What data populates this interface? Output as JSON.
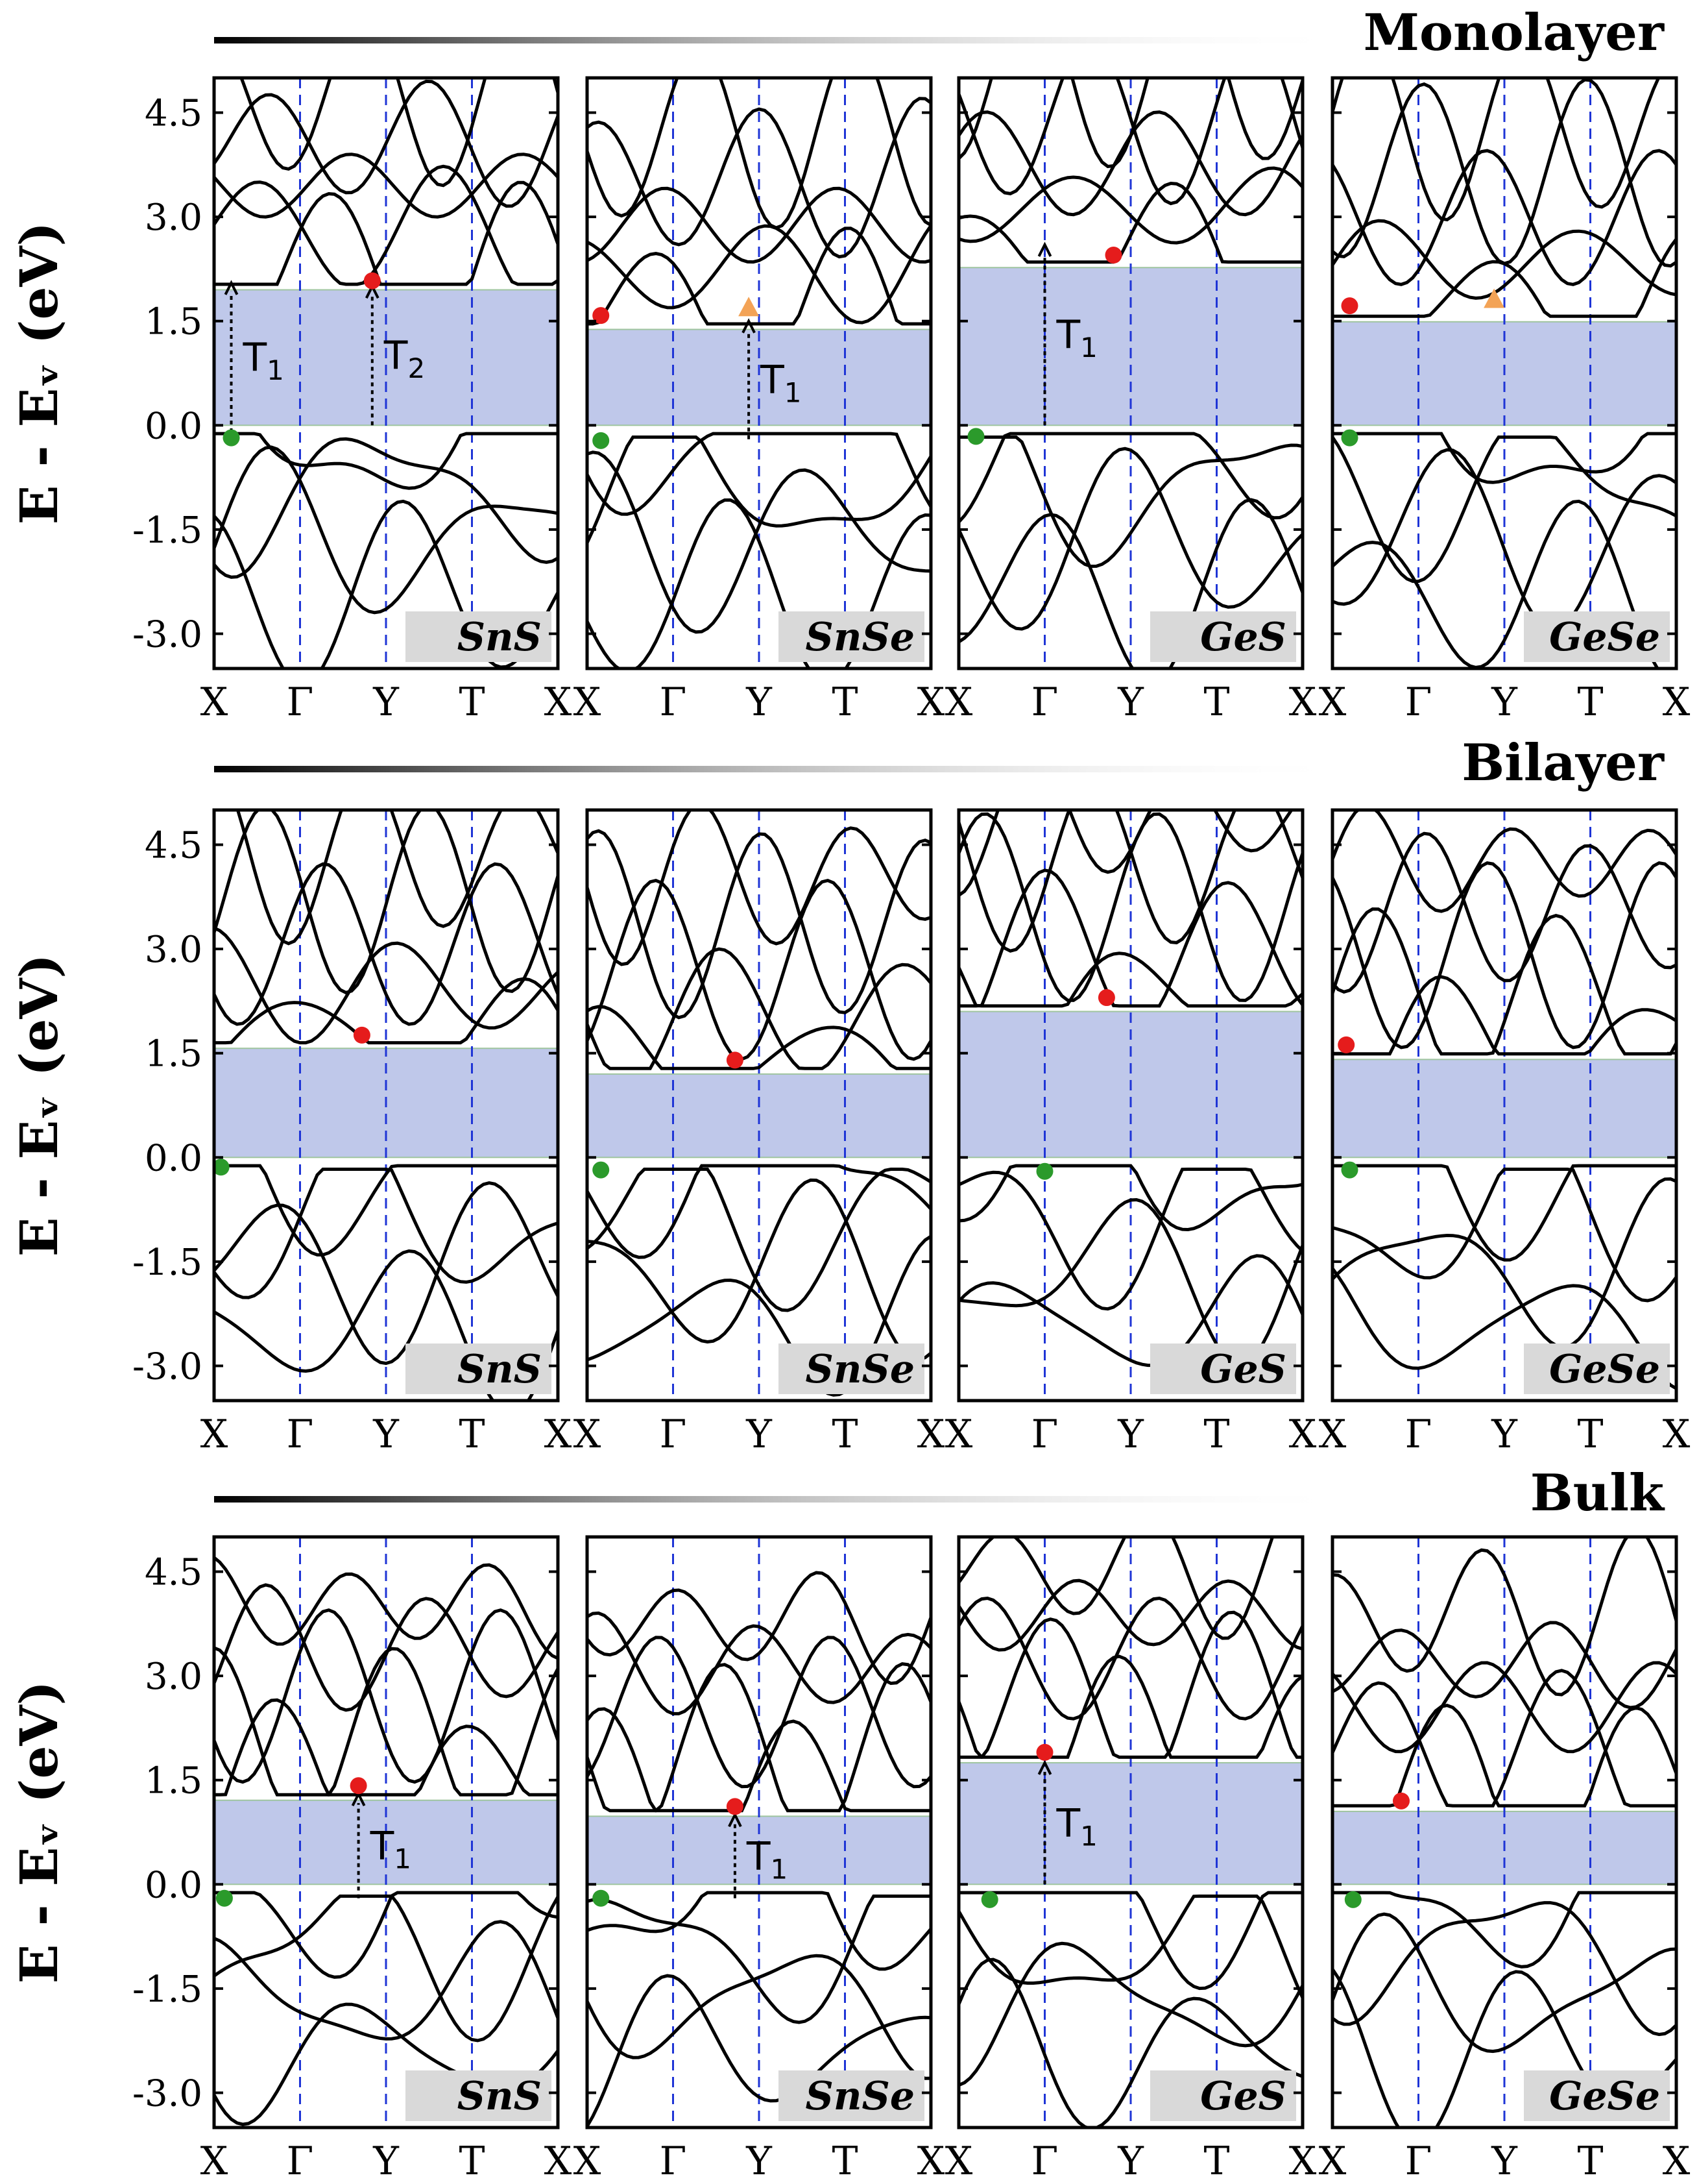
{
  "figure": {
    "y_axis_label": "E - Eᵥ (eV)",
    "y_ticks": [
      "4.5",
      "3.0",
      "1.5",
      "0.0",
      "-1.5",
      "-3.0"
    ],
    "k_path_labels": [
      "X",
      "Γ",
      "Y",
      "T",
      "X"
    ]
  },
  "colors": {
    "gap_band": "#bfc8ea",
    "gap_edge": "#9fc59f",
    "dashed_line": "#1f35d6",
    "band_line": "#000000",
    "vbm_marker": "#2b9a2b",
    "cbm_marker": "#e51c1c",
    "cbm_alt_marker": "#f3a356",
    "label_box": "#d9d9d9"
  },
  "chart_data": [
    {
      "type": "line",
      "title": "Monolayer",
      "ylabel": "E - Eᵥ (eV)",
      "ylim": [
        -3.5,
        5.0
      ],
      "panels": [
        {
          "material": "SnS",
          "gap_eV": 1.95,
          "vbm": [
            0.05,
            -0.18
          ],
          "cbm": [
            0.46,
            2.08
          ],
          "cbm_marker": "circle",
          "kx": [
            0,
            0.25,
            0.5,
            0.75,
            1
          ],
          "transitions": [
            {
              "label": "T1",
              "sub": "1",
              "x": 0.05,
              "from": -0.1,
              "to": 2.05
            },
            {
              "label": "T2",
              "sub": "2",
              "x": 0.46,
              "from": 0.0,
              "to": 2.0
            }
          ]
        },
        {
          "material": "SnSe",
          "gap_eV": 1.38,
          "vbm": [
            0.04,
            -0.22
          ],
          "cbm": [
            0.04,
            1.58
          ],
          "alt_cbm": [
            0.47,
            1.7
          ],
          "cbm_marker": "circle",
          "kx": [
            0,
            0.25,
            0.5,
            0.75,
            1
          ],
          "transitions": [
            {
              "label": "T1",
              "sub": "1",
              "x": 0.47,
              "from": -0.2,
              "to": 1.5
            }
          ]
        },
        {
          "material": "GeS",
          "gap_eV": 2.27,
          "vbm": [
            0.05,
            -0.16
          ],
          "cbm": [
            0.45,
            2.45
          ],
          "cbm_marker": "circle",
          "kx": [
            0,
            0.25,
            0.5,
            0.75,
            1
          ],
          "transitions": [
            {
              "label": "T1",
              "sub": "1",
              "x": 0.25,
              "from": 0.0,
              "to": 2.6
            }
          ]
        },
        {
          "material": "GeSe",
          "gap_eV": 1.49,
          "vbm": [
            0.05,
            -0.18
          ],
          "cbm": [
            0.05,
            1.72
          ],
          "alt_cbm": [
            0.47,
            1.82
          ],
          "cbm_marker": "circle",
          "kx": [
            0,
            0.25,
            0.5,
            0.75,
            1
          ],
          "transitions": []
        }
      ]
    },
    {
      "type": "line",
      "title": "Bilayer",
      "ylabel": "E - Eᵥ (eV)",
      "ylim": [
        -3.5,
        5.0
      ],
      "panels": [
        {
          "material": "SnS",
          "gap_eV": 1.57,
          "vbm": [
            0.02,
            -0.14
          ],
          "cbm": [
            0.43,
            1.76
          ],
          "cbm_marker": "circle",
          "kx": [
            0,
            0.25,
            0.5,
            0.75,
            1
          ],
          "transitions": []
        },
        {
          "material": "SnSe",
          "gap_eV": 1.2,
          "vbm": [
            0.04,
            -0.18
          ],
          "cbm": [
            0.43,
            1.4
          ],
          "cbm_marker": "circle",
          "kx": [
            0,
            0.25,
            0.5,
            0.75,
            1
          ],
          "transitions": []
        },
        {
          "material": "GeS",
          "gap_eV": 2.1,
          "vbm": [
            0.25,
            -0.2
          ],
          "cbm": [
            0.43,
            2.3
          ],
          "cbm_marker": "circle",
          "kx": [
            0,
            0.25,
            0.5,
            0.75,
            1
          ],
          "transitions": []
        },
        {
          "material": "GeSe",
          "gap_eV": 1.41,
          "vbm": [
            0.05,
            -0.18
          ],
          "cbm": [
            0.04,
            1.62
          ],
          "cbm_marker": "circle",
          "kx": [
            0,
            0.25,
            0.5,
            0.75,
            1
          ],
          "transitions": []
        }
      ]
    },
    {
      "type": "line",
      "title": "Bulk",
      "ylabel": "E - Eᵥ (eV)",
      "ylim": [
        -3.5,
        5.0
      ],
      "panels": [
        {
          "material": "SnS",
          "gap_eV": 1.21,
          "vbm": [
            0.03,
            -0.2
          ],
          "cbm": [
            0.42,
            1.42
          ],
          "cbm_marker": "circle",
          "kx": [
            0,
            0.25,
            0.5,
            0.75,
            1
          ],
          "transitions": [
            {
              "label": "T1",
              "sub": "1",
              "x": 0.42,
              "from": -0.2,
              "to": 1.3
            }
          ]
        },
        {
          "material": "SnSe",
          "gap_eV": 0.98,
          "vbm": [
            0.04,
            -0.2
          ],
          "cbm": [
            0.43,
            1.12
          ],
          "cbm_marker": "circle",
          "kx": [
            0,
            0.25,
            0.5,
            0.75,
            1
          ],
          "transitions": [
            {
              "label": "T1",
              "sub": "1",
              "x": 0.43,
              "from": -0.2,
              "to": 1.0
            }
          ]
        },
        {
          "material": "GeS",
          "gap_eV": 1.75,
          "vbm": [
            0.09,
            -0.22
          ],
          "cbm": [
            0.25,
            1.9
          ],
          "cbm_marker": "circle",
          "kx": [
            0,
            0.25,
            0.5,
            0.75,
            1
          ],
          "transitions": [
            {
              "label": "T1",
              "sub": "1",
              "x": 0.25,
              "from": 0.0,
              "to": 1.75
            }
          ]
        },
        {
          "material": "GeSe",
          "gap_eV": 1.05,
          "vbm": [
            0.06,
            -0.22
          ],
          "cbm": [
            0.2,
            1.2
          ],
          "cbm_marker": "circle",
          "kx": [
            0,
            0.25,
            0.5,
            0.75,
            1
          ],
          "transitions": []
        }
      ]
    }
  ]
}
